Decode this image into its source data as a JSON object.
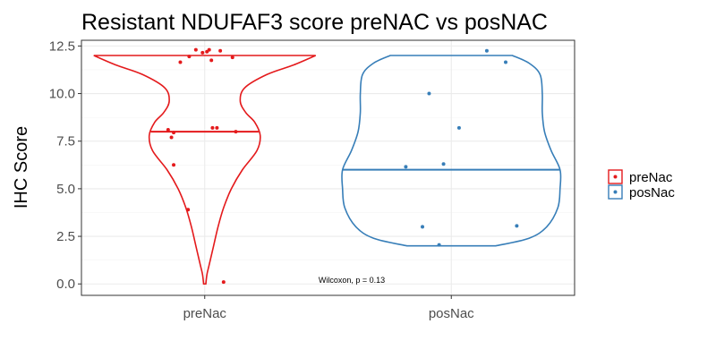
{
  "chart_data": {
    "type": "violin",
    "title": "Resistant NDUFAF3 score preNAC vs posNAC",
    "ylabel": "IHC Score",
    "xlabel": "",
    "ylim": [
      -0.6,
      12.8
    ],
    "yticks": [
      0.0,
      2.5,
      5.0,
      7.5,
      10.0,
      12.5
    ],
    "ytick_labels": [
      "0.0",
      "2.5",
      "5.0",
      "7.5",
      "10.0",
      "12.5"
    ],
    "categories": [
      "preNac",
      "posNac"
    ],
    "grid": true,
    "legend_position": "right",
    "annotation": "Wilcoxon, p = 0.13",
    "series": [
      {
        "name": "preNac",
        "color": "#e41a1c",
        "median": 8.0,
        "min": 0.0,
        "max": 12.0,
        "density": [
          [
            0.0,
            0.01
          ],
          [
            0.5,
            0.02
          ],
          [
            1.0,
            0.04
          ],
          [
            2.0,
            0.08
          ],
          [
            3.0,
            0.12
          ],
          [
            4.0,
            0.17
          ],
          [
            5.0,
            0.24
          ],
          [
            6.0,
            0.34
          ],
          [
            7.0,
            0.47
          ],
          [
            7.8,
            0.5
          ],
          [
            8.5,
            0.45
          ],
          [
            9.0,
            0.37
          ],
          [
            9.6,
            0.32
          ],
          [
            10.3,
            0.36
          ],
          [
            11.0,
            0.56
          ],
          [
            11.5,
            0.8
          ],
          [
            12.0,
            1.0
          ]
        ],
        "points": [
          [
            -0.08,
            12.3
          ],
          [
            0.04,
            12.3
          ],
          [
            0.14,
            12.25
          ],
          [
            -0.02,
            12.15
          ],
          [
            0.02,
            12.2
          ],
          [
            -0.14,
            11.95
          ],
          [
            0.06,
            11.75
          ],
          [
            -0.22,
            11.65
          ],
          [
            0.25,
            11.9
          ],
          [
            -0.33,
            8.1
          ],
          [
            0.07,
            8.2
          ],
          [
            0.11,
            8.2
          ],
          [
            0.28,
            8.0
          ],
          [
            -0.28,
            7.95
          ],
          [
            -0.3,
            7.7
          ],
          [
            -0.28,
            6.25
          ],
          [
            -0.15,
            3.9
          ],
          [
            0.17,
            0.1
          ]
        ]
      },
      {
        "name": "posNac",
        "color": "#377eb8",
        "median": 6.0,
        "min": 2.0,
        "max": 12.0,
        "density": [
          [
            2.0,
            0.4
          ],
          [
            2.4,
            0.7
          ],
          [
            3.0,
            0.86
          ],
          [
            4.0,
            0.96
          ],
          [
            5.0,
            0.98
          ],
          [
            6.0,
            0.98
          ],
          [
            7.0,
            0.9
          ],
          [
            8.0,
            0.84
          ],
          [
            9.0,
            0.82
          ],
          [
            10.0,
            0.82
          ],
          [
            11.0,
            0.8
          ],
          [
            11.6,
            0.7
          ],
          [
            12.0,
            0.55
          ]
        ],
        "points": [
          [
            0.32,
            12.25
          ],
          [
            0.49,
            11.65
          ],
          [
            -0.2,
            10.0
          ],
          [
            0.07,
            8.2
          ],
          [
            -0.41,
            6.15
          ],
          [
            -0.07,
            6.3
          ],
          [
            -0.26,
            3.0
          ],
          [
            0.59,
            3.05
          ],
          [
            -0.11,
            2.05
          ]
        ]
      }
    ]
  }
}
